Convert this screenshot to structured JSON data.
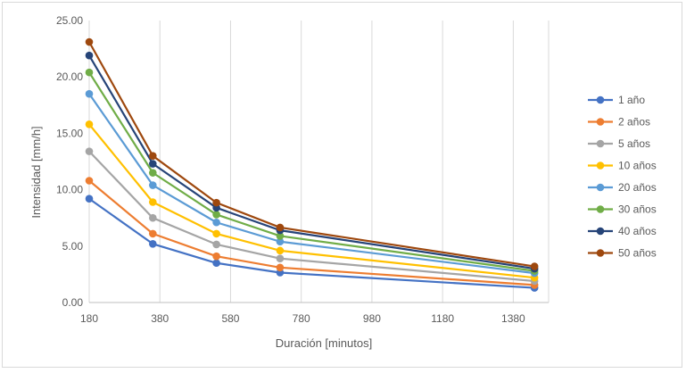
{
  "chart_data": {
    "type": "line",
    "title": "",
    "xlabel": "Duración [minutos]",
    "ylabel": "Intensidad [mm/h]",
    "x": [
      180,
      360,
      540,
      720,
      1440
    ],
    "xlim": [
      180,
      1480
    ],
    "ylim": [
      0,
      25
    ],
    "xticks": [
      "180",
      "380",
      "580",
      "780",
      "980",
      "1180",
      "1380"
    ],
    "xtick_values": [
      180,
      380,
      580,
      780,
      980,
      1180,
      1380
    ],
    "yticks": [
      "0.00",
      "5.00",
      "10.00",
      "15.00",
      "20.00",
      "25.00"
    ],
    "ytick_values": [
      0,
      5,
      10,
      15,
      20,
      25
    ],
    "grid": "vertical",
    "legend_position": "right",
    "series": [
      {
        "name": "1 año",
        "color": "#4472c4",
        "values": [
          9.2,
          5.2,
          3.5,
          2.65,
          1.3
        ]
      },
      {
        "name": "2 años",
        "color": "#ed7d31",
        "values": [
          10.8,
          6.1,
          4.1,
          3.1,
          1.55
        ]
      },
      {
        "name": "5 años",
        "color": "#a5a5a5",
        "values": [
          13.4,
          7.5,
          5.15,
          3.9,
          1.9
        ]
      },
      {
        "name": "10 años",
        "color": "#ffc000",
        "values": [
          15.8,
          8.9,
          6.1,
          4.6,
          2.2
        ]
      },
      {
        "name": "20 años",
        "color": "#5b9bd5",
        "values": [
          18.5,
          10.4,
          7.1,
          5.4,
          2.6
        ]
      },
      {
        "name": "30 años",
        "color": "#70ad47",
        "values": [
          20.4,
          11.5,
          7.8,
          5.9,
          2.8
        ]
      },
      {
        "name": "40 años",
        "color": "#264478",
        "values": [
          21.9,
          12.3,
          8.4,
          6.4,
          3.0
        ]
      },
      {
        "name": "50 años",
        "color": "#9e480e",
        "values": [
          23.1,
          13.0,
          8.85,
          6.65,
          3.2
        ]
      }
    ]
  }
}
